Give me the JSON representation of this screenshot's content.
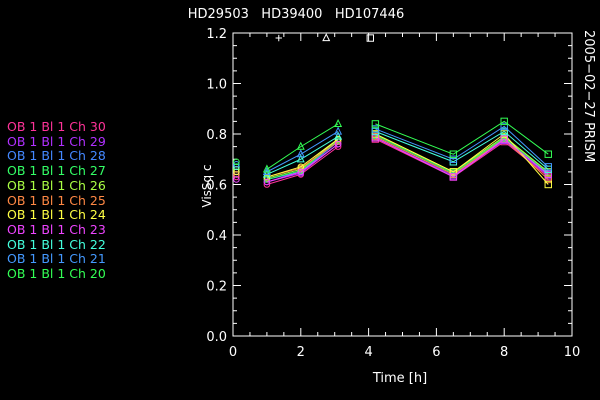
{
  "chart_data": {
    "type": "line",
    "title": "HD29503   HD39400   HD107446",
    "subtitle": "2005−02−27 PRISM",
    "xlabel": "Time [h]",
    "ylabel": "VisSq c",
    "xlim": [
      0,
      10
    ],
    "ylim": [
      0,
      1.2
    ],
    "xticks": [
      0,
      2,
      4,
      6,
      8,
      10
    ],
    "xtick_labels": [
      "0",
      "2",
      "4",
      "6",
      "8",
      "10"
    ],
    "yticks": [
      0,
      0.2,
      0.4,
      0.6,
      0.8,
      1.0,
      1.2
    ],
    "ytick_labels": [
      "0.0",
      "0.2",
      "0.4",
      "0.6",
      "0.8",
      "1.0",
      "1.2"
    ],
    "grid": false,
    "legend_placement": "left",
    "target_markers": [
      {
        "x": 1.35,
        "y": 1.18,
        "symbol": "plus"
      },
      {
        "x": 2.75,
        "y": 1.18,
        "symbol": "triangle"
      },
      {
        "x": 4.05,
        "y": 1.18,
        "symbol": "square"
      }
    ],
    "series": [
      {
        "name": "OB 1 Bl 1 Ch 30",
        "color": "#ff3399",
        "segments": [
          {
            "marker": "circle",
            "points": [
              [
                0.1,
                0.63
              ]
            ]
          },
          {
            "marker": "circle",
            "points": [
              [
                1.0,
                0.6
              ],
              [
                2.0,
                0.64
              ],
              [
                3.1,
                0.75
              ]
            ]
          },
          {
            "marker": "square",
            "points": [
              [
                4.2,
                0.78
              ],
              [
                6.5,
                0.63
              ],
              [
                8.0,
                0.77
              ],
              [
                9.3,
                0.63
              ]
            ]
          }
        ]
      },
      {
        "name": "OB 1 Bl 1 Ch 29",
        "color": "#b030ff",
        "segments": [
          {
            "marker": "circle",
            "points": [
              [
                0.1,
                0.64
              ]
            ]
          },
          {
            "marker": "circle",
            "points": [
              [
                1.0,
                0.61
              ],
              [
                2.0,
                0.645
              ],
              [
                3.1,
                0.76
              ]
            ]
          },
          {
            "marker": "square",
            "points": [
              [
                4.2,
                0.785
              ],
              [
                6.5,
                0.635
              ],
              [
                8.0,
                0.775
              ],
              [
                9.3,
                0.635
              ]
            ]
          }
        ]
      },
      {
        "name": "OB 1 Bl 1 Ch 28",
        "color": "#4488ff",
        "segments": [
          {
            "marker": "circle",
            "points": [
              [
                0.1,
                0.65
              ]
            ]
          },
          {
            "marker": "circle",
            "points": [
              [
                1.0,
                0.62
              ],
              [
                2.0,
                0.65
              ],
              [
                3.1,
                0.77
              ]
            ]
          },
          {
            "marker": "square",
            "points": [
              [
                4.2,
                0.79
              ],
              [
                6.5,
                0.64
              ],
              [
                8.0,
                0.78
              ],
              [
                9.3,
                0.64
              ]
            ]
          }
        ]
      },
      {
        "name": "OB 1 Bl 1 Ch 27",
        "color": "#33ff66",
        "segments": [
          {
            "marker": "circle",
            "points": [
              [
                0.1,
                0.66
              ]
            ]
          },
          {
            "marker": "circle",
            "points": [
              [
                1.0,
                0.62
              ],
              [
                2.0,
                0.655
              ],
              [
                3.1,
                0.775
              ]
            ]
          },
          {
            "marker": "square",
            "points": [
              [
                4.2,
                0.795
              ],
              [
                6.5,
                0.645
              ],
              [
                8.0,
                0.785
              ],
              [
                9.3,
                0.645
              ]
            ]
          }
        ]
      },
      {
        "name": "OB 1 Bl 1 Ch 26",
        "color": "#aaff44",
        "segments": [
          {
            "marker": "circle",
            "points": [
              [
                0.1,
                0.66
              ]
            ]
          },
          {
            "marker": "circle",
            "points": [
              [
                1.0,
                0.625
              ],
              [
                2.0,
                0.66
              ],
              [
                3.1,
                0.78
              ]
            ]
          },
          {
            "marker": "square",
            "points": [
              [
                4.2,
                0.8
              ],
              [
                6.5,
                0.65
              ],
              [
                8.0,
                0.79
              ],
              [
                9.3,
                0.65
              ]
            ]
          }
        ]
      },
      {
        "name": "OB 1 Bl 1 Ch 25",
        "color": "#ff8844",
        "segments": [
          {
            "marker": "circle",
            "points": [
              [
                0.1,
                0.64
              ]
            ]
          },
          {
            "marker": "circle",
            "points": [
              [
                1.0,
                0.63
              ],
              [
                2.0,
                0.665
              ],
              [
                3.1,
                0.77
              ]
            ]
          },
          {
            "marker": "square",
            "points": [
              [
                4.2,
                0.79
              ],
              [
                6.5,
                0.64
              ],
              [
                8.0,
                0.78
              ],
              [
                9.3,
                0.62
              ]
            ]
          }
        ]
      },
      {
        "name": "OB 1 Bl 1 Ch 24",
        "color": "#ffff44",
        "segments": [
          {
            "marker": "circle",
            "points": [
              [
                0.1,
                0.65
              ]
            ]
          },
          {
            "marker": "circle",
            "points": [
              [
                1.0,
                0.63
              ],
              [
                2.0,
                0.67
              ],
              [
                3.1,
                0.78
              ]
            ]
          },
          {
            "marker": "square",
            "points": [
              [
                4.2,
                0.8
              ],
              [
                6.5,
                0.65
              ],
              [
                8.0,
                0.8
              ],
              [
                9.3,
                0.6
              ]
            ]
          }
        ]
      },
      {
        "name": "OB 1 Bl 1 Ch 23",
        "color": "#ee44ff",
        "segments": [
          {
            "marker": "circle",
            "points": [
              [
                0.1,
                0.62
              ]
            ]
          },
          {
            "marker": "circle",
            "points": [
              [
                1.0,
                0.61
              ],
              [
                2.0,
                0.65
              ],
              [
                3.1,
                0.76
              ]
            ]
          },
          {
            "marker": "square",
            "points": [
              [
                4.2,
                0.785
              ],
              [
                6.5,
                0.63
              ],
              [
                8.0,
                0.78
              ],
              [
                9.3,
                0.64
              ]
            ]
          }
        ]
      },
      {
        "name": "OB 1 Bl 1 Ch 22",
        "color": "#44ffdd",
        "segments": [
          {
            "marker": "circle",
            "points": [
              [
                0.1,
                0.67
              ]
            ]
          },
          {
            "marker": "triangle",
            "points": [
              [
                1.0,
                0.64
              ],
              [
                2.0,
                0.7
              ],
              [
                3.1,
                0.79
              ]
            ]
          },
          {
            "marker": "square",
            "points": [
              [
                4.2,
                0.81
              ],
              [
                6.5,
                0.69
              ],
              [
                8.0,
                0.81
              ],
              [
                9.3,
                0.66
              ]
            ]
          }
        ]
      },
      {
        "name": "OB 1 Bl 1 Ch 21",
        "color": "#4499ff",
        "segments": [
          {
            "marker": "circle",
            "points": [
              [
                0.1,
                0.68
              ]
            ]
          },
          {
            "marker": "triangle",
            "points": [
              [
                1.0,
                0.65
              ],
              [
                2.0,
                0.72
              ],
              [
                3.1,
                0.81
              ]
            ]
          },
          {
            "marker": "square",
            "points": [
              [
                4.2,
                0.82
              ],
              [
                6.5,
                0.7
              ],
              [
                8.0,
                0.83
              ],
              [
                9.3,
                0.67
              ]
            ]
          }
        ]
      },
      {
        "name": "OB 1 Bl 1 Ch 20",
        "color": "#33ff55",
        "segments": [
          {
            "marker": "circle",
            "points": [
              [
                0.1,
                0.69
              ]
            ]
          },
          {
            "marker": "triangle",
            "points": [
              [
                1.0,
                0.66
              ],
              [
                2.0,
                0.75
              ],
              [
                3.1,
                0.84
              ]
            ]
          },
          {
            "marker": "square",
            "points": [
              [
                4.2,
                0.84
              ],
              [
                6.5,
                0.72
              ],
              [
                8.0,
                0.85
              ],
              [
                9.3,
                0.72
              ]
            ]
          }
        ]
      }
    ]
  }
}
